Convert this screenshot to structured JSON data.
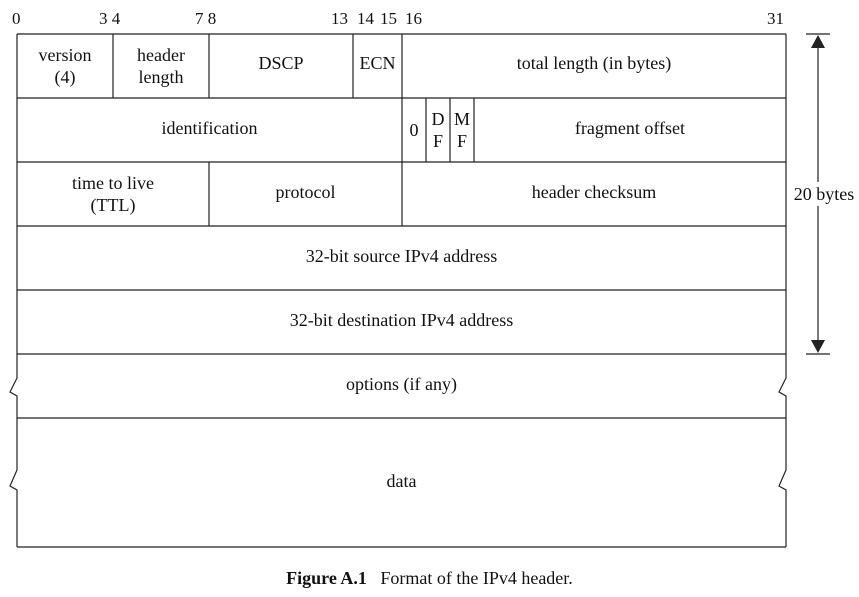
{
  "bit_numbers": {
    "b0": "0",
    "b3_4": "3 4",
    "b7_8": "7 8",
    "b13": "13",
    "b14": "14",
    "b15": "15",
    "b16": "16",
    "b31": "31"
  },
  "fields": {
    "version": "version",
    "version_value": "(4)",
    "header_length_1": "header",
    "header_length_2": "length",
    "dscp": "DSCP",
    "ecn": "ECN",
    "total_length": "total length (in bytes)",
    "identification": "identification",
    "flag0": "0",
    "df_1": "D",
    "df_2": "F",
    "mf_1": "M",
    "mf_2": "F",
    "fragment_offset": "fragment offset",
    "ttl_1": "time to live",
    "ttl_2": "(TTL)",
    "protocol": "protocol",
    "header_checksum": "header checksum",
    "source_address": "32-bit source IPv4 address",
    "destination_address": "32-bit destination IPv4 address",
    "options": "options (if any)",
    "data": "data"
  },
  "size_label": "20 bytes",
  "caption": {
    "label": "Figure A.1",
    "text": "Format of the IPv4 header."
  }
}
